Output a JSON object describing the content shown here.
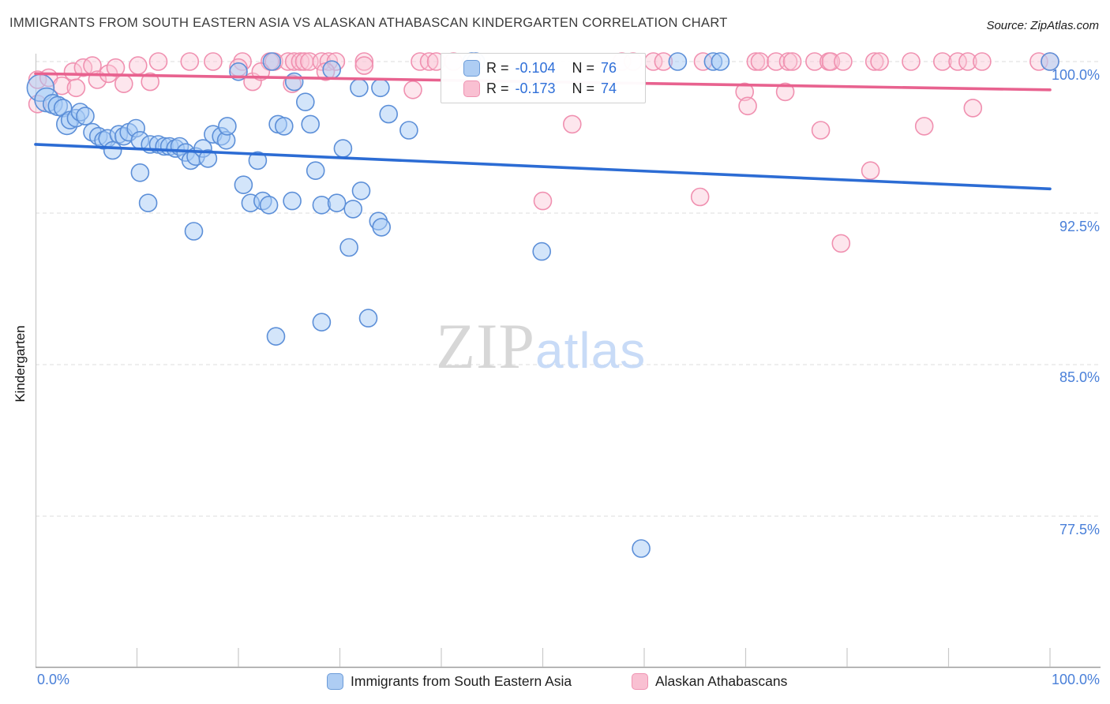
{
  "title": "IMMIGRANTS FROM SOUTH EASTERN ASIA VS ALASKAN ATHABASCAN KINDERGARTEN CORRELATION CHART",
  "source": "Source: ZipAtlas.com",
  "watermark": {
    "zip": "ZIP",
    "atlas": "atlas"
  },
  "y_axis": {
    "label": "Kindergarten",
    "ticks": [
      "100.0%",
      "92.5%",
      "85.0%",
      "77.5%"
    ],
    "tick_values": [
      100,
      92.5,
      85,
      77.5
    ]
  },
  "x_axis": {
    "min_label": "0.0%",
    "max_label": "100.0%",
    "min": 0,
    "max": 100,
    "tick_positions": [
      10,
      20,
      30,
      40,
      50,
      60,
      70,
      80,
      90,
      100
    ]
  },
  "stats_legend": {
    "rows": [
      {
        "series": "Immigrants from South Eastern Asia",
        "r_label": "R =",
        "r": "-0.104",
        "n_label": "N =",
        "n": "76"
      },
      {
        "series": "Alaskan Athabascans",
        "r_label": "R =",
        "r": "-0.173",
        "n_label": "N =",
        "n": "74"
      }
    ]
  },
  "bottom_legend": [
    {
      "label": "Immigrants from South Eastern Asia"
    },
    {
      "label": "Alaskan Athabascans"
    }
  ],
  "colors": {
    "blue_stroke": "#5c8fd8",
    "blue_fill": "rgba(168,203,245,0.5)",
    "blue_trend": "#2c6cd4",
    "pink_stroke": "#f090b0",
    "pink_fill": "rgba(250,199,216,0.45)",
    "pink_trend": "#e8628f",
    "grid": "#dcdcdc",
    "axis": "#c9c9c9",
    "axis_bottom": "#9e9e9e",
    "tick_label_blue": "#4a80d9"
  },
  "chart_data": {
    "type": "scatter",
    "title": "IMMIGRANTS FROM SOUTH EASTERN ASIA VS ALASKAN ATHABASCAN KINDERGARTEN CORRELATION CHART",
    "xlabel": "Immigrants from South Eastern Asia (%)",
    "ylabel": "Kindergarten",
    "x_range": [
      0,
      100
    ],
    "y_ticks": [
      100,
      92.5,
      85,
      77.5
    ],
    "x_tick_step": 10,
    "grid": "horizontal-dashed",
    "legend_position": "top-center-overlay",
    "series": [
      {
        "name": "Alaskan Athabascans",
        "R": -0.173,
        "N": 74,
        "trend": {
          "x": [
            0,
            100
          ],
          "y": [
            99.4,
            98.6
          ]
        },
        "points": [
          [
            12.1,
            100
          ],
          [
            15.2,
            100
          ],
          [
            17.5,
            100
          ],
          [
            20.4,
            100
          ],
          [
            23.1,
            100
          ],
          [
            23.5,
            100
          ],
          [
            24.9,
            100
          ],
          [
            25.5,
            100
          ],
          [
            26.1,
            100
          ],
          [
            26.5,
            100
          ],
          [
            27.0,
            100
          ],
          [
            28.2,
            100
          ],
          [
            28.9,
            100
          ],
          [
            29.6,
            100
          ],
          [
            32.4,
            100
          ],
          [
            37.9,
            100
          ],
          [
            38.8,
            100
          ],
          [
            39.5,
            100
          ],
          [
            41.2,
            100
          ],
          [
            57.8,
            100
          ],
          [
            58.9,
            100
          ],
          [
            60.9,
            100
          ],
          [
            61.9,
            100
          ],
          [
            65.8,
            100
          ],
          [
            71.0,
            100
          ],
          [
            71.4,
            100
          ],
          [
            73.0,
            100
          ],
          [
            74.2,
            100
          ],
          [
            74.6,
            100
          ],
          [
            76.8,
            100
          ],
          [
            78.2,
            100
          ],
          [
            78.4,
            100
          ],
          [
            79.6,
            100
          ],
          [
            82.7,
            100
          ],
          [
            83.2,
            100
          ],
          [
            86.3,
            100
          ],
          [
            89.4,
            100
          ],
          [
            90.9,
            100
          ],
          [
            91.9,
            100
          ],
          [
            93.3,
            100
          ],
          [
            98.9,
            100
          ],
          [
            100.0,
            100
          ],
          [
            0.2,
            99.1
          ],
          [
            1.3,
            99.2
          ],
          [
            2.6,
            98.8
          ],
          [
            3.7,
            99.5
          ],
          [
            4.0,
            98.7
          ],
          [
            4.7,
            99.7
          ],
          [
            5.6,
            99.8
          ],
          [
            6.1,
            99.1
          ],
          [
            7.2,
            99.4
          ],
          [
            7.9,
            99.7
          ],
          [
            8.7,
            98.9
          ],
          [
            10.1,
            99.8
          ],
          [
            11.3,
            99.0
          ],
          [
            0.2,
            97.9
          ],
          [
            20.0,
            99.7
          ],
          [
            21.4,
            99.0
          ],
          [
            22.2,
            99.5
          ],
          [
            25.3,
            98.9
          ],
          [
            28.6,
            99.5
          ],
          [
            32.4,
            99.8
          ],
          [
            37.2,
            98.6
          ],
          [
            52.9,
            96.9
          ],
          [
            50.0,
            93.1
          ],
          [
            65.5,
            93.3
          ],
          [
            69.9,
            98.5
          ],
          [
            70.2,
            97.8
          ],
          [
            73.9,
            98.5
          ],
          [
            77.4,
            96.6
          ],
          [
            79.4,
            91.0
          ],
          [
            82.3,
            94.6
          ],
          [
            87.6,
            96.8
          ],
          [
            92.4,
            97.7
          ]
        ]
      },
      {
        "name": "Immigrants from South Eastern Asia",
        "R": -0.104,
        "N": 76,
        "trend": {
          "x": [
            0,
            100
          ],
          "y": [
            95.9,
            93.7
          ]
        },
        "points": [
          [
            0.5,
            98.7,
            17
          ],
          [
            1.1,
            98.1,
            15
          ],
          [
            1.7,
            97.9,
            12
          ],
          [
            2.2,
            97.8,
            12
          ],
          [
            2.7,
            97.7
          ],
          [
            3.1,
            96.9,
            13
          ],
          [
            3.4,
            97.1
          ],
          [
            4.0,
            97.2
          ],
          [
            4.4,
            97.5
          ],
          [
            4.9,
            97.3
          ],
          [
            5.6,
            96.5
          ],
          [
            6.2,
            96.3
          ],
          [
            6.7,
            96.1
          ],
          [
            7.1,
            96.2
          ],
          [
            7.6,
            95.6
          ],
          [
            8.2,
            96.4
          ],
          [
            8.7,
            96.3
          ],
          [
            9.2,
            96.5
          ],
          [
            9.9,
            96.7
          ],
          [
            10.3,
            96.1
          ],
          [
            10.3,
            94.5
          ],
          [
            11.1,
            93.0
          ],
          [
            11.3,
            95.9
          ],
          [
            12.1,
            95.9
          ],
          [
            12.7,
            95.8
          ],
          [
            13.2,
            95.8
          ],
          [
            13.8,
            95.7
          ],
          [
            14.2,
            95.8
          ],
          [
            14.8,
            95.5
          ],
          [
            15.3,
            95.1
          ],
          [
            15.6,
            91.6
          ],
          [
            15.8,
            95.3
          ],
          [
            16.5,
            95.7
          ],
          [
            17.0,
            95.2
          ],
          [
            17.5,
            96.4
          ],
          [
            18.3,
            96.3
          ],
          [
            18.8,
            96.1
          ],
          [
            18.9,
            96.8
          ],
          [
            20.0,
            99.5
          ],
          [
            20.5,
            93.9
          ],
          [
            21.2,
            93.0
          ],
          [
            21.9,
            95.1
          ],
          [
            22.4,
            93.1
          ],
          [
            23.0,
            92.9
          ],
          [
            23.3,
            100.0
          ],
          [
            23.7,
            86.4
          ],
          [
            23.9,
            96.9
          ],
          [
            24.5,
            96.8
          ],
          [
            25.3,
            93.1
          ],
          [
            25.5,
            99.0
          ],
          [
            26.6,
            98.0
          ],
          [
            27.1,
            96.9
          ],
          [
            27.6,
            94.6
          ],
          [
            28.2,
            92.9
          ],
          [
            28.2,
            87.1
          ],
          [
            29.2,
            99.6
          ],
          [
            29.7,
            93.0
          ],
          [
            30.3,
            95.7
          ],
          [
            30.9,
            90.8
          ],
          [
            31.3,
            92.7
          ],
          [
            31.9,
            98.7
          ],
          [
            32.1,
            93.6
          ],
          [
            32.8,
            87.3
          ],
          [
            33.8,
            92.1
          ],
          [
            34.0,
            98.7
          ],
          [
            34.1,
            91.8
          ],
          [
            34.8,
            97.4
          ],
          [
            36.8,
            96.6
          ],
          [
            43.0,
            100.0
          ],
          [
            43.4,
            100.0
          ],
          [
            49.9,
            90.6
          ],
          [
            59.7,
            75.9
          ],
          [
            63.3,
            100.0
          ],
          [
            66.8,
            100.0
          ],
          [
            67.5,
            100.0
          ],
          [
            100.0,
            100.0
          ]
        ]
      }
    ]
  }
}
